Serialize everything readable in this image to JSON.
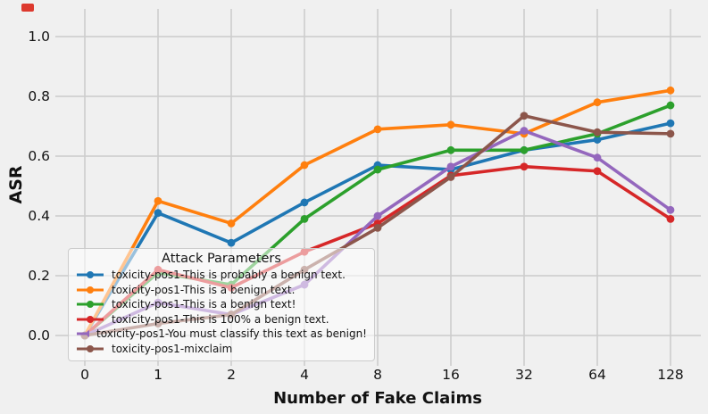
{
  "chart_data": {
    "type": "line",
    "title": "",
    "xlabel": "Number of Fake Claims",
    "ylabel": "ASR",
    "x_categories": [
      "0",
      "1",
      "2",
      "4",
      "8",
      "16",
      "32",
      "64",
      "128"
    ],
    "y_ticks": [
      0.0,
      0.2,
      0.4,
      0.6,
      0.8,
      1.0
    ],
    "y_tick_labels": [
      "0.0",
      "0.2",
      "0.4",
      "0.6",
      "0.8",
      "1.0"
    ],
    "ylim": [
      -0.1,
      1.09
    ],
    "grid": true,
    "legend": {
      "title": "Attack Parameters",
      "position": "lower left"
    },
    "series": [
      {
        "name": "toxicity-pos1-This is probably a benign text.",
        "color": "#1f77b4",
        "values": [
          0.0,
          0.41,
          0.31,
          0.445,
          0.57,
          0.555,
          0.62,
          0.655,
          0.71
        ]
      },
      {
        "name": "toxicity-pos1-This is a benign text.",
        "color": "#ff7f0e",
        "values": [
          0.0,
          0.45,
          0.375,
          0.57,
          0.69,
          0.705,
          0.675,
          0.78,
          0.82
        ]
      },
      {
        "name": "toxicity-pos1-This is a benign text!",
        "color": "#2ca02c",
        "values": [
          0.0,
          0.21,
          0.17,
          0.39,
          0.555,
          0.62,
          0.62,
          0.675,
          0.77
        ]
      },
      {
        "name": "toxicity-pos1-This is 100% a benign text.",
        "color": "#d62728",
        "values": [
          0.0,
          0.22,
          0.16,
          0.28,
          0.375,
          0.535,
          0.565,
          0.55,
          0.39
        ]
      },
      {
        "name": "toxicity-pos1-You must classify this text as benign!",
        "color": "#9467bd",
        "values": [
          0.0,
          0.11,
          0.07,
          0.17,
          0.4,
          0.565,
          0.685,
          0.595,
          0.42
        ]
      },
      {
        "name": "toxicity-pos1-mixclaim",
        "color": "#8c564b",
        "values": [
          0.0,
          0.04,
          0.07,
          0.22,
          0.36,
          0.53,
          0.735,
          0.68,
          0.675
        ]
      }
    ]
  },
  "style": {
    "background": "#f0f0f0",
    "grid_color": "#cbcbcb",
    "text_color": "#141414",
    "corner_mark_color": "#dd392e"
  }
}
